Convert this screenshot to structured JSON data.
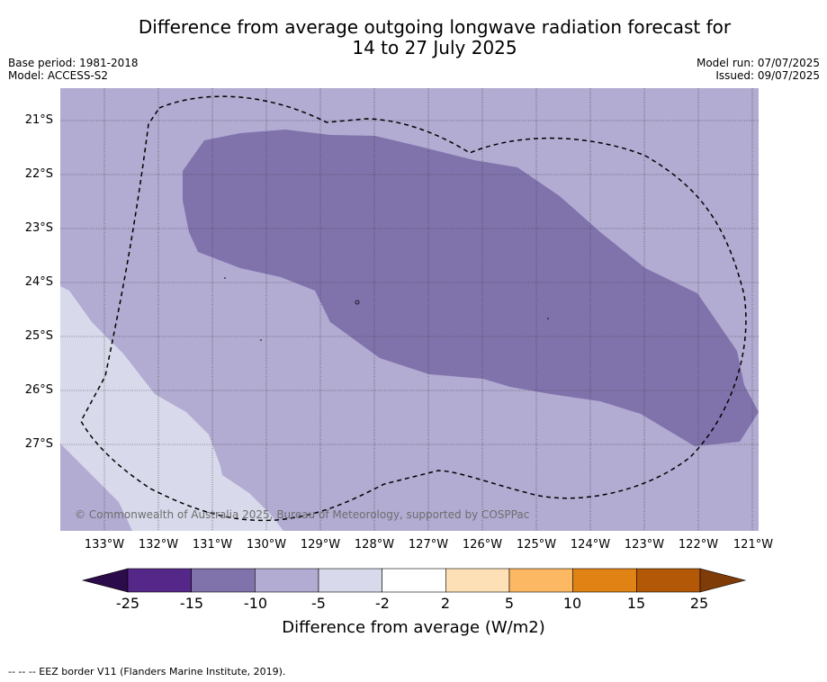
{
  "title_line1": "Difference from average outgoing longwave radiation forecast for",
  "title_line2": "14 to 27 July 2025",
  "base_period": "Base period: 1981-2018",
  "model": "Model: ACCESS-S2",
  "model_run": "Model run: 07/07/2025",
  "issued": "Issued: 09/07/2025",
  "copyright": "© Commonwealth of Australia 2025, Bureau of Meteorology, supported by COSPPac",
  "lat_labels": [
    "21°S",
    "22°S",
    "23°S",
    "24°S",
    "25°S",
    "26°S",
    "27°S"
  ],
  "lon_labels": [
    "133°W",
    "132°W",
    "131°W",
    "130°W",
    "129°W",
    "128°W",
    "127°W",
    "126°W",
    "125°W",
    "124°W",
    "123°W",
    "122°W",
    "121°W"
  ],
  "colorbar": {
    "ticks": [
      "-25",
      "-15",
      "-10",
      "-5",
      "-2",
      "2",
      "5",
      "10",
      "15",
      "25"
    ],
    "colors": [
      "#2c0b4b",
      "#542788",
      "#8073ac",
      "#b2abd2",
      "#d8daeb",
      "#ffffff",
      "#fee0b6",
      "#fdb863",
      "#e08214",
      "#b35806",
      "#7f3b08"
    ],
    "label": "Difference from average (W/m2)"
  },
  "map_colors": {
    "light_purple": "#b2abd2",
    "medium_purple": "#8073ac",
    "pale_lavender": "#d8daeb"
  },
  "footer": "--  --  -- EEZ border V11 (Flanders Marine Institute, 2019)."
}
